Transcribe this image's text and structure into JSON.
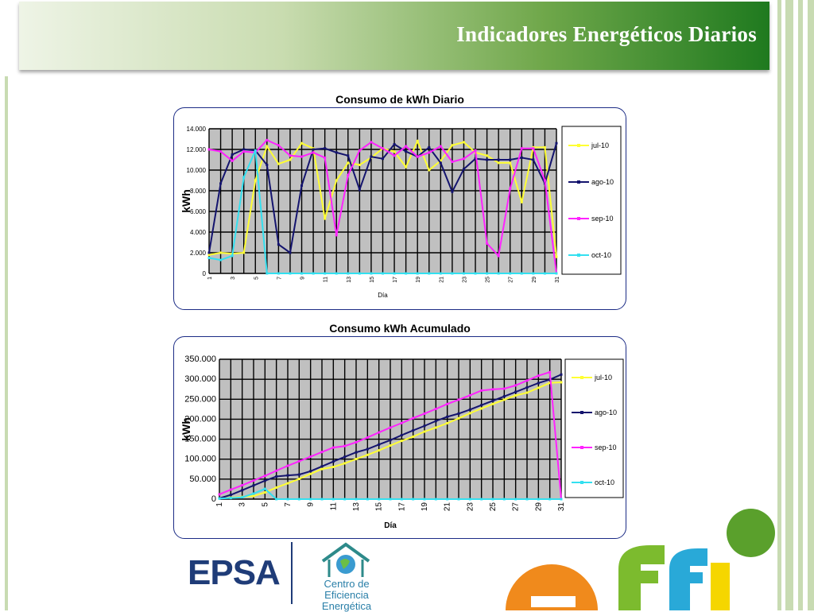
{
  "slide_title": "Indicadores Energéticos Diarios",
  "logos": {
    "epsa": "EPSA",
    "centro_line1": "Centro de",
    "centro_line2": "Eficiencia Energética"
  },
  "colors": {
    "jul-10": "#ffff33",
    "ago-10": "#14146e",
    "sep-10": "#ff22ff",
    "oct-10": "#33e0f0",
    "plot_bg": "#c0c0c0",
    "grid": "#000000",
    "chart_border": "#1c2c86"
  },
  "chart_data": [
    {
      "type": "line",
      "title": "Consumo de kWh Diario",
      "xlabel": "Día",
      "ylabel": "kWh",
      "ylim": [
        0,
        14000
      ],
      "yticks": [
        0,
        2000,
        4000,
        6000,
        8000,
        10000,
        12000,
        14000
      ],
      "ytick_labels": [
        "0",
        "2.000",
        "4.000",
        "6.000",
        "8.000",
        "10.000",
        "12.000",
        "14.000"
      ],
      "x": [
        1,
        2,
        3,
        4,
        5,
        6,
        7,
        8,
        9,
        10,
        11,
        12,
        13,
        14,
        15,
        16,
        17,
        18,
        19,
        20,
        21,
        22,
        23,
        24,
        25,
        26,
        27,
        28,
        29,
        30,
        31
      ],
      "xtick_labels": [
        "1",
        "3",
        "5",
        "7",
        "9",
        "11",
        "13",
        "15",
        "17",
        "19",
        "21",
        "23",
        "25",
        "27",
        "29",
        "31"
      ],
      "grid": true,
      "legend_position": "right",
      "series": [
        {
          "name": "jul-10",
          "values": [
            1800,
            2000,
            1900,
            2000,
            9000,
            12300,
            10600,
            11000,
            12600,
            12100,
            5300,
            9000,
            10700,
            10500,
            11200,
            12100,
            11800,
            10300,
            12800,
            10000,
            10900,
            12400,
            12700,
            11700,
            11400,
            10700,
            10700,
            6900,
            12200,
            12200,
            1600
          ]
        },
        {
          "name": "ago-10",
          "values": [
            2000,
            8700,
            11500,
            12000,
            11900,
            10500,
            2800,
            2000,
            8500,
            12000,
            12100,
            11700,
            11400,
            8100,
            11300,
            11100,
            12500,
            11800,
            11300,
            12200,
            10700,
            7900,
            10100,
            11100,
            11000,
            11000,
            11000,
            11200,
            11000,
            8700,
            12600
          ]
        },
        {
          "name": "sep-10",
          "values": [
            12000,
            11800,
            10900,
            11800,
            11700,
            12900,
            12400,
            11400,
            11300,
            11700,
            11200,
            3700,
            9500,
            11900,
            12700,
            12100,
            11400,
            12300,
            11300,
            11700,
            12300,
            10800,
            11100,
            11900,
            2900,
            1700,
            8200,
            12100,
            12100,
            9000,
            0
          ]
        },
        {
          "name": "oct-10",
          "values": [
            1500,
            1300,
            1700,
            9300,
            11900,
            0,
            0,
            0,
            0,
            0,
            0,
            0,
            0,
            0,
            0,
            0,
            0,
            0,
            0,
            0,
            0,
            0,
            0,
            0,
            0,
            0,
            0,
            0,
            0,
            0,
            0
          ]
        }
      ]
    },
    {
      "type": "line",
      "title": "Consumo kWh Acumulado",
      "xlabel": "Día",
      "ylabel": "kWh",
      "ylim": [
        0,
        350000
      ],
      "yticks": [
        0,
        50000,
        100000,
        150000,
        200000,
        250000,
        300000,
        350000
      ],
      "ytick_labels": [
        "0",
        "50.000",
        "100.000",
        "150.000",
        "200.000",
        "250.000",
        "300.000",
        "350.000"
      ],
      "x": [
        1,
        2,
        3,
        4,
        5,
        6,
        7,
        8,
        9,
        10,
        11,
        12,
        13,
        14,
        15,
        16,
        17,
        18,
        19,
        20,
        21,
        22,
        23,
        24,
        25,
        26,
        27,
        28,
        29,
        30,
        31
      ],
      "xtick_labels": [
        "1",
        "3",
        "5",
        "7",
        "9",
        "11",
        "13",
        "15",
        "17",
        "19",
        "21",
        "23",
        "25",
        "27",
        "29",
        "31"
      ],
      "grid": true,
      "legend_position": "right",
      "series": [
        {
          "name": "jul-10",
          "values": [
            1800,
            3800,
            5700,
            7700,
            16700,
            29000,
            39600,
            50600,
            63200,
            75300,
            80600,
            89600,
            100300,
            110800,
            122000,
            134100,
            145900,
            156200,
            169000,
            179000,
            189900,
            202300,
            215000,
            226700,
            238100,
            248800,
            259500,
            266400,
            278600,
            290800,
            292400
          ]
        },
        {
          "name": "ago-10",
          "values": [
            2000,
            10700,
            22200,
            34200,
            46100,
            56600,
            59400,
            61400,
            69900,
            81900,
            94000,
            105700,
            117100,
            125200,
            136500,
            147600,
            160100,
            171900,
            183200,
            195400,
            206100,
            214000,
            224100,
            235200,
            246200,
            257200,
            268200,
            279400,
            290400,
            299100,
            311700
          ]
        },
        {
          "name": "sep-10",
          "values": [
            12000,
            23800,
            34700,
            46500,
            58200,
            71100,
            83500,
            94900,
            106200,
            117900,
            129100,
            132800,
            142300,
            154200,
            166900,
            179000,
            190400,
            202700,
            214000,
            225700,
            238000,
            248800,
            259900,
            271800,
            274700,
            276400,
            284600,
            296700,
            308800,
            317800,
            0
          ]
        },
        {
          "name": "oct-10",
          "values": [
            1500,
            2800,
            4500,
            13800,
            25700,
            0,
            0,
            0,
            0,
            0,
            0,
            0,
            0,
            0,
            0,
            0,
            0,
            0,
            0,
            0,
            0,
            0,
            0,
            0,
            0,
            0,
            0,
            0,
            0,
            0,
            0
          ]
        }
      ]
    }
  ]
}
